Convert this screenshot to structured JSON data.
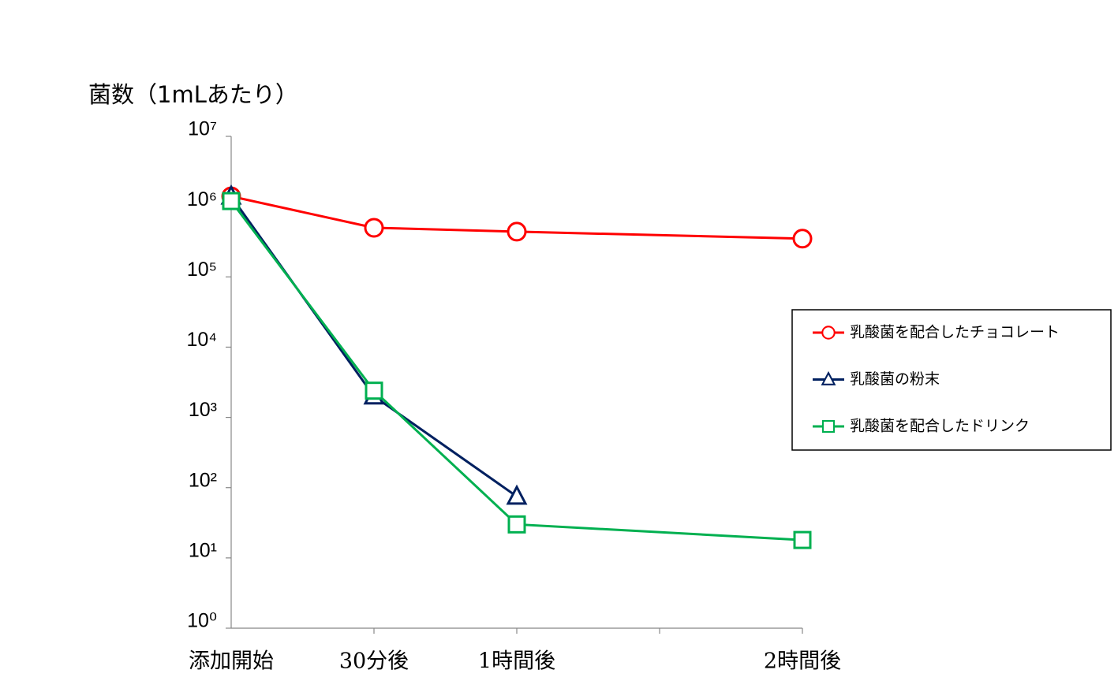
{
  "chart_data": {
    "type": "line",
    "y_label": "菌数（1mLあたり）",
    "categories": [
      "添加開始",
      "30分後",
      "1時間後",
      "2時間後"
    ],
    "y_log": true,
    "ylim": [
      1,
      10000000
    ],
    "yticks": [
      {
        "value": 1,
        "label": "10⁰"
      },
      {
        "value": 10,
        "label": "10¹"
      },
      {
        "value": 100,
        "label": "10²"
      },
      {
        "value": 1000,
        "label": "10³"
      },
      {
        "value": 10000,
        "label": "10⁴"
      },
      {
        "value": 100000,
        "label": "10⁵"
      },
      {
        "value": 1000000,
        "label": "10⁶"
      },
      {
        "value": 10000000,
        "label": "10⁷"
      }
    ],
    "legend_position": "right",
    "series": [
      {
        "name": "乳酸菌を配合したチョコレート",
        "color": "#ff0000",
        "marker": "circle",
        "values": [
          1400000,
          500000,
          440000,
          350000
        ]
      },
      {
        "name": "乳酸菌の粉末",
        "color": "#002060",
        "marker": "triangle",
        "values": [
          1400000,
          2000,
          75,
          null
        ]
      },
      {
        "name": "乳酸菌を配合したドリンク",
        "color": "#00b050",
        "marker": "square",
        "values": [
          1200000,
          2400,
          30,
          18
        ]
      }
    ]
  }
}
